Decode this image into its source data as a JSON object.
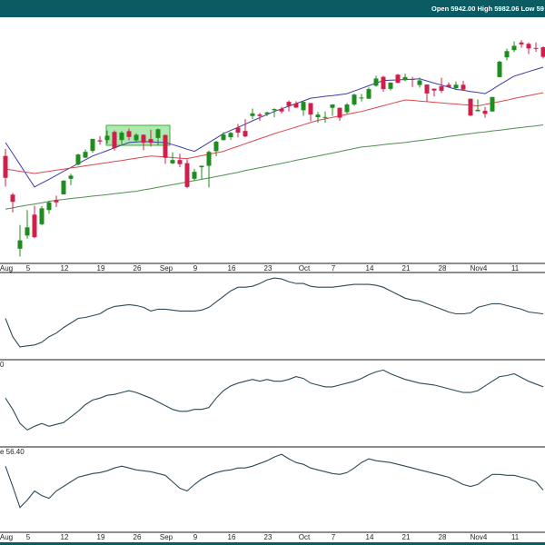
{
  "header": {
    "open_label": "Open",
    "open": "5942.00",
    "high_label": "High",
    "high": "5982.06",
    "low_label": "Low",
    "low": "59"
  },
  "chart_data": [
    {
      "type": "candlestick",
      "categories": [
        "Aug",
        null,
        null,
        "5",
        null,
        null,
        null,
        null,
        "12",
        null,
        null,
        null,
        null,
        "19",
        null,
        null,
        null,
        null,
        "26",
        null,
        null,
        null,
        "Sep",
        null,
        null,
        null,
        "9",
        null,
        null,
        null,
        null,
        "16",
        null,
        null,
        null,
        null,
        "23",
        null,
        null,
        null,
        null,
        "Oct",
        null,
        null,
        null,
        "7",
        null,
        null,
        null,
        null,
        "14",
        null,
        null,
        null,
        null,
        "21",
        null,
        null,
        null,
        null,
        "28",
        null,
        null,
        null,
        null,
        "Nov4",
        null,
        null,
        null,
        null,
        "11",
        null,
        null,
        null,
        null
      ],
      "open": [
        5537,
        5376,
        5151,
        5206,
        5293,
        5253,
        5312,
        5353,
        5377,
        5442,
        5501,
        5530,
        5558,
        5602,
        5603,
        5637,
        5603,
        5640,
        5602,
        5625,
        5607,
        5612,
        5624,
        5506,
        5520,
        5507,
        5442,
        5490,
        5496,
        5557,
        5603,
        5615,
        5655,
        5641,
        5703,
        5709,
        5711,
        5727,
        5733,
        5762,
        5755,
        5727,
        5757,
        5698,
        5699,
        5737,
        5737,
        5719,
        5751,
        5778,
        5775,
        5829,
        5866,
        5816,
        5875,
        5852,
        5857,
        5832,
        5834,
        5817,
        5827,
        5833,
        5819,
        5833,
        5775,
        5723,
        5725,
        5722,
        5865,
        5947,
        5977,
        6009,
        6003,
        5986,
        5989
      ],
      "high": [
        5566,
        5383,
        5250,
        5312,
        5330,
        5328,
        5351,
        5372,
        5436,
        5463,
        5546,
        5564,
        5608,
        5620,
        5643,
        5643,
        5641,
        5651,
        5631,
        5627,
        5646,
        5651,
        5626,
        5552,
        5546,
        5523,
        5484,
        5497,
        5560,
        5600,
        5636,
        5637,
        5670,
        5690,
        5734,
        5716,
        5721,
        5735,
        5741,
        5767,
        5765,
        5763,
        5757,
        5720,
        5722,
        5752,
        5739,
        5757,
        5796,
        5795,
        5822,
        5871,
        5870,
        5843,
        5878,
        5879,
        5866,
        5863,
        5834,
        5817,
        5862,
        5843,
        5847,
        5850,
        5775,
        5772,
        5741,
        5783,
        5933,
        5983,
        6013,
        6018,
        6009,
        6009,
        5993
      ],
      "low": [
        5410,
        5302,
        5119,
        5193,
        5195,
        5249,
        5297,
        5324,
        5377,
        5416,
        5497,
        5528,
        5550,
        5584,
        5588,
        5560,
        5585,
        5602,
        5593,
        5561,
        5576,
        5581,
        5504,
        5503,
        5490,
        5403,
        5434,
        5441,
        5406,
        5536,
        5601,
        5604,
        5614,
        5615,
        5690,
        5683,
        5703,
        5698,
        5714,
        5722,
        5737,
        5704,
        5681,
        5675,
        5675,
        5704,
        5683,
        5712,
        5745,
        5764,
        5775,
        5825,
        5804,
        5809,
        5840,
        5848,
        5824,
        5821,
        5762,
        5784,
        5799,
        5823,
        5811,
        5811,
        5703,
        5723,
        5696,
        5722,
        5865,
        5935,
        5969,
        5987,
        5961,
        5970,
        5942
      ],
      "close": [
        5446,
        5346,
        5186,
        5240,
        5199,
        5319,
        5344,
        5344,
        5434,
        5455,
        5543,
        5554,
        5608,
        5597,
        5621,
        5570,
        5634,
        5616,
        5625,
        5592,
        5592,
        5648,
        5529,
        5520,
        5503,
        5408,
        5471,
        5496,
        5554,
        5596,
        5626,
        5633,
        5634,
        5618,
        5714,
        5703,
        5718,
        5732,
        5722,
        5745,
        5738,
        5762,
        5709,
        5709,
        5699,
        5751,
        5696,
        5751,
        5792,
        5780,
        5815,
        5859,
        5815,
        5842,
        5841,
        5865,
        5853,
        5851,
        5797,
        5809,
        5808,
        5823,
        5833,
        5813,
        5705,
        5729,
        5712,
        5782,
        5929,
        5973,
        5995,
        6001,
        5984,
        5985,
        5949
      ],
      "up_color": "#1e8c1e",
      "down_color": "#d11f4c",
      "ylim": [
        5090,
        6110
      ],
      "series": [
        {
          "color": "#3c3ca8",
          "values": [
            5593,
            5547,
            5501,
            5454,
            5408,
            5424,
            5440,
            5456,
            5473,
            5489,
            5505,
            5521,
            5537,
            5548,
            5559,
            5571,
            5582,
            5593,
            5595,
            5597,
            5596,
            5594,
            5593,
            5584,
            5575,
            5565,
            5556,
            5574,
            5593,
            5611,
            5630,
            5643,
            5656,
            5669,
            5683,
            5696,
            5709,
            5722,
            5733,
            5744,
            5755,
            5766,
            5777,
            5781,
            5785,
            5788,
            5792,
            5796,
            5807,
            5818,
            5829,
            5840,
            5851,
            5852,
            5853,
            5855,
            5856,
            5858,
            5849,
            5840,
            5832,
            5823,
            5814,
            5810,
            5805,
            5801,
            5796,
            5814,
            5833,
            5851,
            5869,
            5878,
            5888,
            5897,
            5906
          ]
        },
        {
          "color": "#d9474f",
          "values": [
            5482,
            5478,
            5473,
            5469,
            5464,
            5469,
            5473,
            5478,
            5482,
            5487,
            5491,
            5496,
            5500,
            5505,
            5509,
            5514,
            5518,
            5523,
            5528,
            5532,
            5537,
            5535,
            5533,
            5530,
            5528,
            5526,
            5532,
            5538,
            5544,
            5550,
            5556,
            5567,
            5577,
            5588,
            5598,
            5609,
            5619,
            5630,
            5639,
            5648,
            5657,
            5667,
            5676,
            5685,
            5691,
            5697,
            5704,
            5710,
            5716,
            5722,
            5730,
            5738,
            5746,
            5754,
            5762,
            5770,
            5768,
            5765,
            5763,
            5760,
            5758,
            5755,
            5753,
            5750,
            5748,
            5745,
            5751,
            5757,
            5763,
            5769,
            5776,
            5782,
            5788,
            5794,
            5800
          ]
        },
        {
          "color": "#4f8f4f",
          "values": [
            5316,
            5321,
            5327,
            5332,
            5337,
            5342,
            5348,
            5353,
            5356,
            5360,
            5363,
            5366,
            5370,
            5373,
            5376,
            5380,
            5383,
            5387,
            5390,
            5396,
            5401,
            5407,
            5412,
            5418,
            5423,
            5429,
            5434,
            5440,
            5445,
            5451,
            5457,
            5463,
            5469,
            5476,
            5482,
            5488,
            5494,
            5500,
            5506,
            5512,
            5519,
            5525,
            5531,
            5537,
            5543,
            5549,
            5555,
            5562,
            5568,
            5574,
            5577,
            5580,
            5584,
            5587,
            5590,
            5593,
            5597,
            5601,
            5605,
            5609,
            5613,
            5618,
            5622,
            5626,
            5630,
            5634,
            5637,
            5641,
            5644,
            5648,
            5652,
            5655,
            5659,
            5662,
            5666
          ]
        }
      ]
    },
    {
      "type": "line",
      "color": "#2e4a58",
      "ylim": [
        0,
        95
      ],
      "values": [
        45,
        25,
        14,
        15,
        16,
        19,
        25,
        29,
        35,
        40,
        45,
        46,
        48,
        50,
        55,
        58,
        59,
        60,
        59,
        57,
        53,
        55,
        55,
        54,
        53,
        53,
        53,
        54,
        57,
        63,
        69,
        75,
        79,
        79,
        80,
        83,
        87,
        89,
        88,
        85,
        83,
        83,
        80,
        79,
        79,
        79,
        80,
        81,
        82,
        82,
        82,
        81,
        79,
        75,
        71,
        67,
        65,
        64,
        61,
        58,
        55,
        52,
        50,
        50,
        51,
        57,
        59,
        61,
        61,
        59,
        57,
        55,
        52,
        51,
        50
      ]
    },
    {
      "type": "line",
      "label": "0",
      "color": "#2e4a58",
      "ylim": [
        0,
        93
      ],
      "values": [
        52,
        40,
        25,
        18,
        22,
        25,
        22,
        24,
        26,
        32,
        38,
        45,
        50,
        52,
        55,
        56,
        58,
        60,
        58,
        55,
        52,
        48,
        44,
        40,
        38,
        38,
        40,
        40,
        42,
        52,
        60,
        65,
        68,
        70,
        72,
        70,
        72,
        70,
        70,
        72,
        75,
        73,
        68,
        66,
        64,
        64,
        66,
        68,
        70,
        73,
        77,
        80,
        82,
        78,
        75,
        72,
        70,
        68,
        67,
        66,
        64,
        62,
        60,
        58,
        58,
        60,
        65,
        70,
        75,
        76,
        78,
        74,
        70,
        67,
        64
      ]
    },
    {
      "type": "line",
      "label": "e 56.40",
      "color": "#2e4a58",
      "ylim": [
        0,
        93
      ],
      "values": [
        72,
        50,
        27,
        35,
        45,
        40,
        37,
        45,
        50,
        55,
        60,
        62,
        64,
        65,
        67,
        70,
        72,
        70,
        68,
        67,
        66,
        64,
        62,
        55,
        48,
        45,
        52,
        58,
        62,
        65,
        67,
        68,
        70,
        70,
        72,
        75,
        78,
        82,
        85,
        80,
        76,
        74,
        70,
        68,
        66,
        64,
        63,
        65,
        70,
        76,
        80,
        78,
        77,
        76,
        74,
        72,
        70,
        68,
        66,
        64,
        62,
        60,
        56,
        52,
        50,
        52,
        58,
        63,
        63,
        62,
        62,
        60,
        58,
        55,
        46
      ]
    }
  ]
}
